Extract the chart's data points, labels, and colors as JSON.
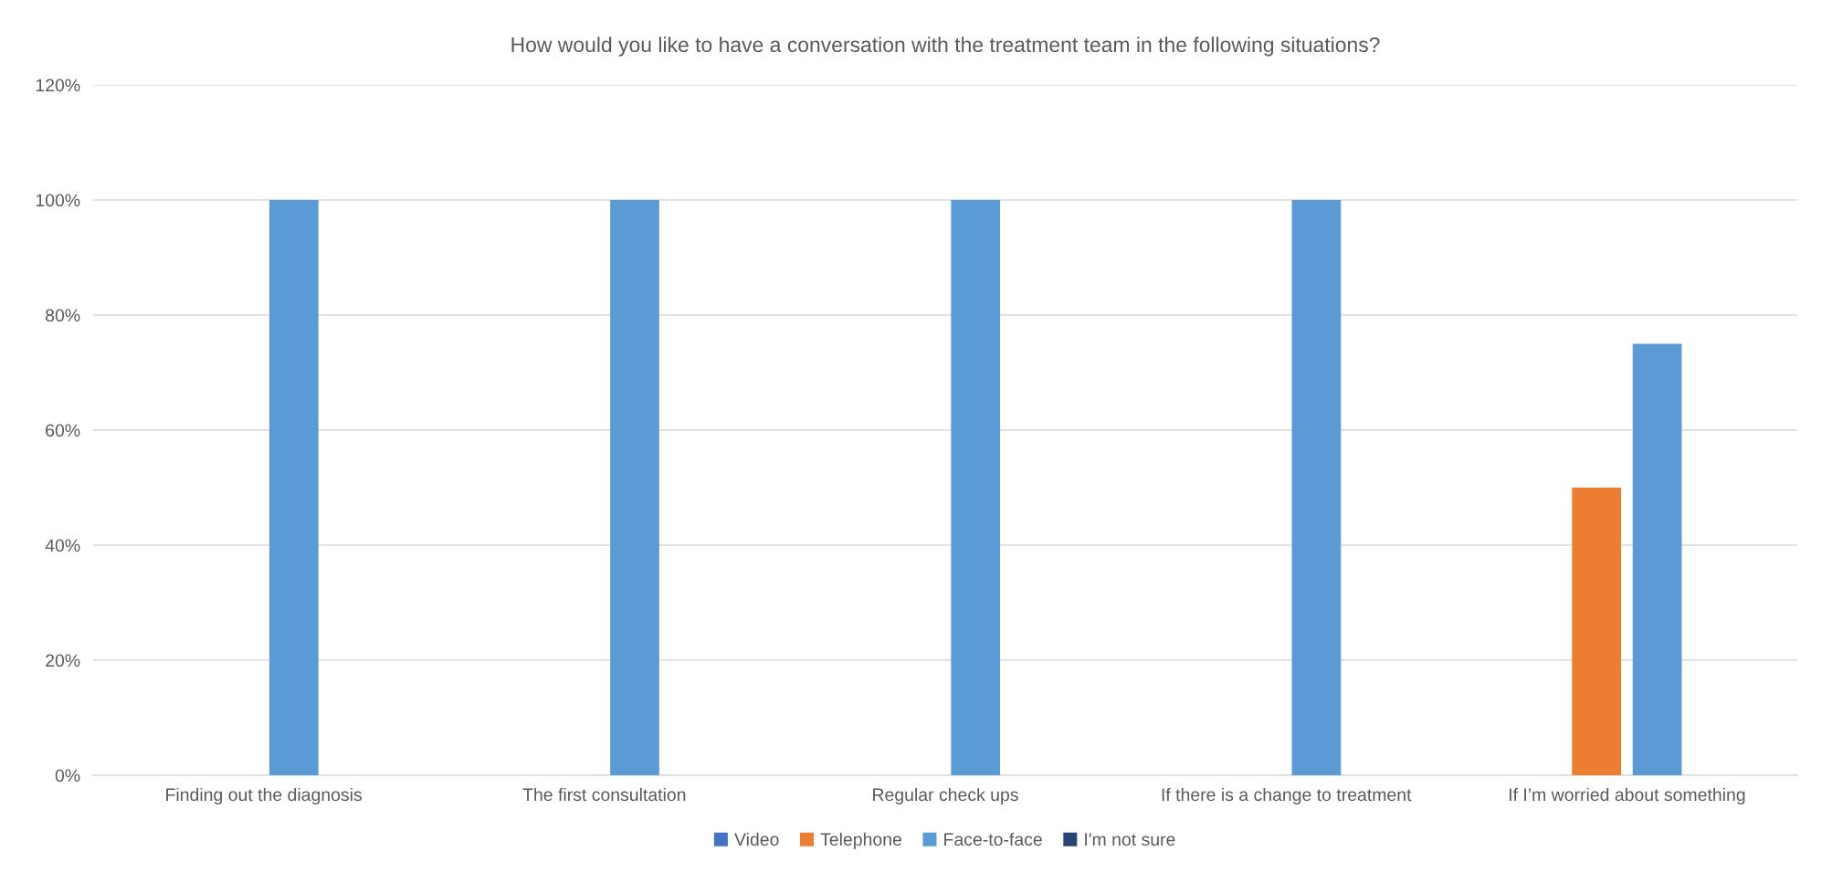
{
  "chart_data": {
    "type": "bar",
    "title": "How would you like to have a conversation with the treatment team in the following situations?",
    "categories": [
      "Finding out the diagnosis",
      "The first consultation",
      "Regular check ups",
      "If there is a change to treatment",
      "If I’m worried about something"
    ],
    "series": [
      {
        "name": "Video",
        "color": "#4472c4",
        "values": [
          0,
          0,
          0,
          0,
          0
        ]
      },
      {
        "name": "Telephone",
        "color": "#ed7d31",
        "values": [
          0,
          0,
          0,
          0,
          50
        ]
      },
      {
        "name": "Face-to-face",
        "color": "#5b9bd5",
        "values": [
          100,
          100,
          100,
          100,
          75
        ]
      },
      {
        "name": "I'm not sure",
        "color": "#264478",
        "values": [
          0,
          0,
          0,
          0,
          0
        ]
      }
    ],
    "ylim": [
      0,
      120
    ],
    "yticks": [
      {
        "value": 0,
        "label": "0%"
      },
      {
        "value": 20,
        "label": "20%"
      },
      {
        "value": 40,
        "label": "40%"
      },
      {
        "value": 60,
        "label": "60%"
      },
      {
        "value": 80,
        "label": "80%"
      },
      {
        "value": 100,
        "label": "100%"
      },
      {
        "value": 120,
        "label": "120%"
      }
    ],
    "grid": "y",
    "legend": "bottom"
  }
}
